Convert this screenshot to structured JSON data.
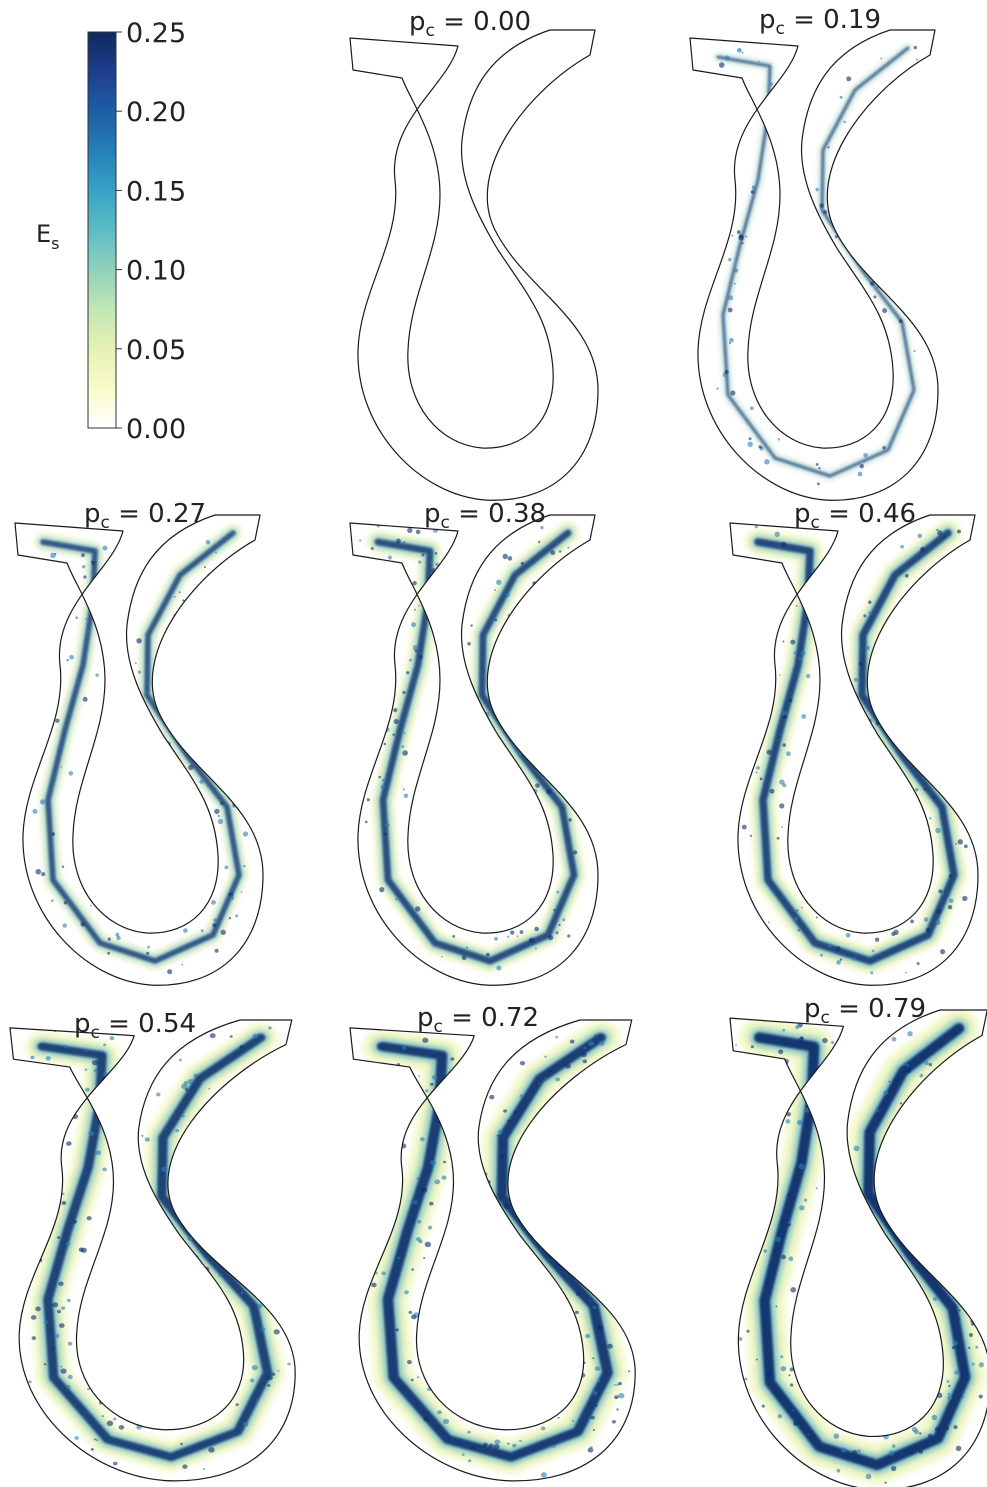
{
  "colorbar": {
    "label_main": "E",
    "label_sub": "s",
    "ticks": [
      "0.25",
      "0.20",
      "0.15",
      "0.10",
      "0.05",
      "0.00"
    ],
    "tick_values": [
      0.25,
      0.2,
      0.15,
      0.1,
      0.05,
      0.0
    ],
    "range": [
      0.0,
      0.25
    ],
    "colors": [
      "#ffffff",
      "#f7fbc9",
      "#e4f2b3",
      "#c2e6b5",
      "#8fd1bb",
      "#5cbcc5",
      "#37a3c5",
      "#2480b8",
      "#1e5ea5",
      "#1f3d8d",
      "#0c2a5c"
    ]
  },
  "panels": [
    {
      "prefix": "p",
      "sub": "c",
      "value": "= 0.00",
      "pc": 0.0,
      "intensity": 0.0
    },
    {
      "prefix": "p",
      "sub": "c",
      "value": "= 0.19",
      "pc": 0.19,
      "intensity": 0.18
    },
    {
      "prefix": "p",
      "sub": "c",
      "value": "= 0.27",
      "pc": 0.27,
      "intensity": 0.45
    },
    {
      "prefix": "p",
      "sub": "c",
      "value": "= 0.38",
      "pc": 0.38,
      "intensity": 0.58
    },
    {
      "prefix": "p",
      "sub": "c",
      "value": "= 0.46",
      "pc": 0.46,
      "intensity": 0.66
    },
    {
      "prefix": "p",
      "sub": "c",
      "value": "= 0.54",
      "pc": 0.54,
      "intensity": 0.74
    },
    {
      "prefix": "p",
      "sub": "c",
      "value": "= 0.72",
      "pc": 0.72,
      "intensity": 0.85
    },
    {
      "prefix": "p",
      "sub": "c",
      "value": "= 0.79",
      "pc": 0.79,
      "intensity": 0.95
    }
  ]
}
